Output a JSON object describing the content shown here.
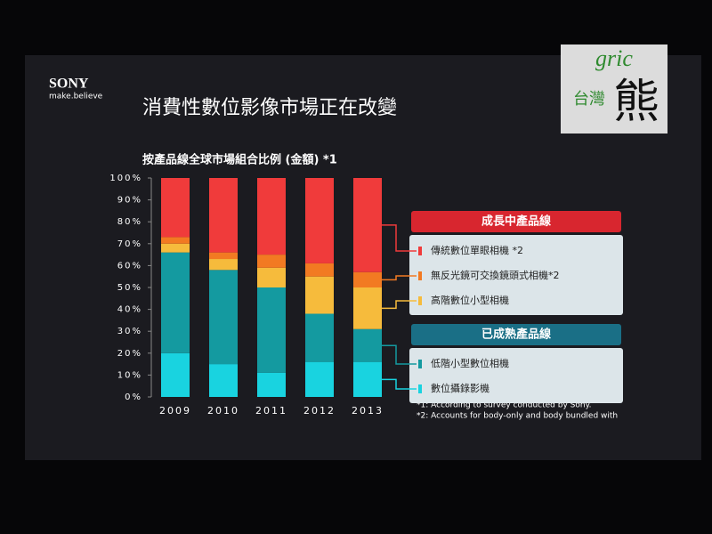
{
  "slide": {
    "brand": "SONY",
    "tagline": "make.believe"
  },
  "watermark": {
    "latin": "gric",
    "place": "台灣",
    "glyph": "熊"
  },
  "chart_data": {
    "type": "stacked_bar",
    "title": "消費性數位影像市場正在改變",
    "subtitle": "按產品線全球市場組合比例 (金額) *1",
    "categories": [
      "2009",
      "2010",
      "2011",
      "2012",
      "2013"
    ],
    "series": [
      {
        "name": "數位攝錄影機",
        "color": "#19d3e0",
        "values": [
          20,
          15,
          11,
          16,
          16
        ]
      },
      {
        "name": "低階小型數位相機",
        "color": "#149aa0",
        "values": [
          46,
          43,
          39,
          22,
          15
        ]
      },
      {
        "name": "高階數位小型相機",
        "color": "#f6bb3c",
        "values": [
          4,
          5,
          9,
          17,
          19
        ]
      },
      {
        "name": "無反光鏡可交換鏡頭式相機*2",
        "color": "#f27a22",
        "values": [
          3,
          3,
          6,
          6,
          7
        ]
      },
      {
        "name": "傳統數位單眼相機 *2",
        "color": "#f03b3b",
        "values": [
          27,
          34,
          35,
          39,
          43
        ]
      }
    ],
    "legend_groups": [
      {
        "title": "成長中產品線",
        "color": "#d8262f"
      },
      {
        "title": "已成熟產品線",
        "color": "#1a6f86"
      }
    ],
    "ylim": [
      0,
      100
    ],
    "yticks": [
      {
        "value": 0,
        "label": "0%"
      },
      {
        "value": 10,
        "label": "10%"
      },
      {
        "value": 20,
        "label": "20%"
      },
      {
        "value": 30,
        "label": "30%"
      },
      {
        "value": 40,
        "label": "40%"
      },
      {
        "value": 50,
        "label": "50%"
      },
      {
        "value": 60,
        "label": "60%"
      },
      {
        "value": 70,
        "label": "70%"
      },
      {
        "value": 80,
        "label": "80%"
      },
      {
        "value": 90,
        "label": "90%"
      },
      {
        "value": 100,
        "label": "100%"
      }
    ],
    "footnotes": [
      "*1: According to survey conducted by Sony.",
      "*2: Accounts for body-only and body bundled with"
    ]
  }
}
